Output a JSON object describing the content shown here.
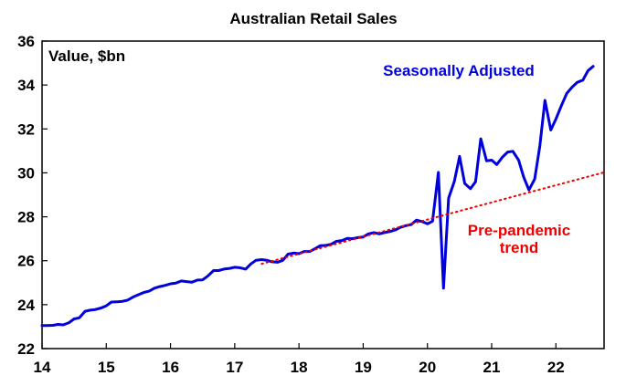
{
  "chart_data": {
    "type": "line",
    "title": "Australian Retail Sales",
    "unit_label": "Value, $bn",
    "xlabel": "",
    "ylabel": "",
    "x_ticks": [
      "14",
      "15",
      "16",
      "17",
      "18",
      "19",
      "20",
      "21",
      "22"
    ],
    "y_ticks": [
      "22",
      "24",
      "26",
      "28",
      "30",
      "32",
      "34",
      "36"
    ],
    "xlim": [
      2014,
      2022.75
    ],
    "ylim": [
      22,
      36
    ],
    "grid": false,
    "series": [
      {
        "name": "Seasonally Adjusted",
        "color": "#0000dd",
        "style": "solid",
        "x": [
          2014.0,
          2014.08,
          2014.17,
          2014.25,
          2014.33,
          2014.42,
          2014.5,
          2014.58,
          2014.67,
          2014.75,
          2014.83,
          2014.92,
          2015.0,
          2015.08,
          2015.17,
          2015.25,
          2015.33,
          2015.42,
          2015.5,
          2015.58,
          2015.67,
          2015.75,
          2015.83,
          2015.92,
          2016.0,
          2016.08,
          2016.17,
          2016.25,
          2016.33,
          2016.42,
          2016.5,
          2016.58,
          2016.67,
          2016.75,
          2016.83,
          2016.92,
          2017.0,
          2017.08,
          2017.17,
          2017.25,
          2017.33,
          2017.42,
          2017.5,
          2017.58,
          2017.67,
          2017.75,
          2017.83,
          2017.92,
          2018.0,
          2018.08,
          2018.17,
          2018.25,
          2018.33,
          2018.42,
          2018.5,
          2018.58,
          2018.67,
          2018.75,
          2018.83,
          2018.92,
          2019.0,
          2019.08,
          2019.17,
          2019.25,
          2019.33,
          2019.42,
          2019.5,
          2019.58,
          2019.67,
          2019.75,
          2019.83,
          2019.92,
          2020.0,
          2020.08,
          2020.17,
          2020.25,
          2020.33,
          2020.42,
          2020.5,
          2020.58,
          2020.67,
          2020.75,
          2020.83,
          2020.92,
          2021.0,
          2021.08,
          2021.17,
          2021.25,
          2021.33,
          2021.42,
          2021.5,
          2021.58,
          2021.67,
          2021.75,
          2021.83,
          2021.92,
          2022.0,
          2022.08,
          2022.17,
          2022.25,
          2022.33,
          2022.42,
          2022.5,
          2022.58
        ],
        "values": [
          23.05,
          23.05,
          23.06,
          23.1,
          23.08,
          23.18,
          23.35,
          23.4,
          23.7,
          23.75,
          23.78,
          23.85,
          23.95,
          24.12,
          24.13,
          24.15,
          24.2,
          24.35,
          24.45,
          24.55,
          24.62,
          24.75,
          24.82,
          24.88,
          24.95,
          24.98,
          25.08,
          25.05,
          25.02,
          25.12,
          25.13,
          25.3,
          25.55,
          25.55,
          25.62,
          25.65,
          25.7,
          25.68,
          25.62,
          25.85,
          26.02,
          26.05,
          26.02,
          25.95,
          25.93,
          26.02,
          26.3,
          26.35,
          26.32,
          26.42,
          26.42,
          26.55,
          26.68,
          26.7,
          26.75,
          26.88,
          26.92,
          27.02,
          27.0,
          27.05,
          27.08,
          27.22,
          27.28,
          27.22,
          27.28,
          27.33,
          27.4,
          27.52,
          27.6,
          27.65,
          27.85,
          27.78,
          27.68,
          27.8,
          30.02,
          24.75,
          28.85,
          29.62,
          30.75,
          29.52,
          29.28,
          29.6,
          31.55,
          30.55,
          30.58,
          30.38,
          30.72,
          30.95,
          30.98,
          30.58,
          29.8,
          29.22,
          29.72,
          31.22,
          33.3,
          31.95,
          32.45,
          33.02,
          33.62,
          33.9,
          34.12,
          34.22,
          34.65,
          34.85
        ]
      },
      {
        "name": "Pre-pandemic trend",
        "color": "#ee0000",
        "style": "dotted",
        "x": [
          2017.42,
          2022.75
        ],
        "values": [
          25.86,
          30.02
        ]
      }
    ]
  },
  "labels": {
    "seasonally_adjusted": "Seasonally Adjusted",
    "trend_line1": "Pre-pandemic",
    "trend_line2": "trend"
  },
  "colors": {
    "axis": "#000000",
    "sa_line": "#0000dd",
    "trend_line": "#ee0000"
  }
}
